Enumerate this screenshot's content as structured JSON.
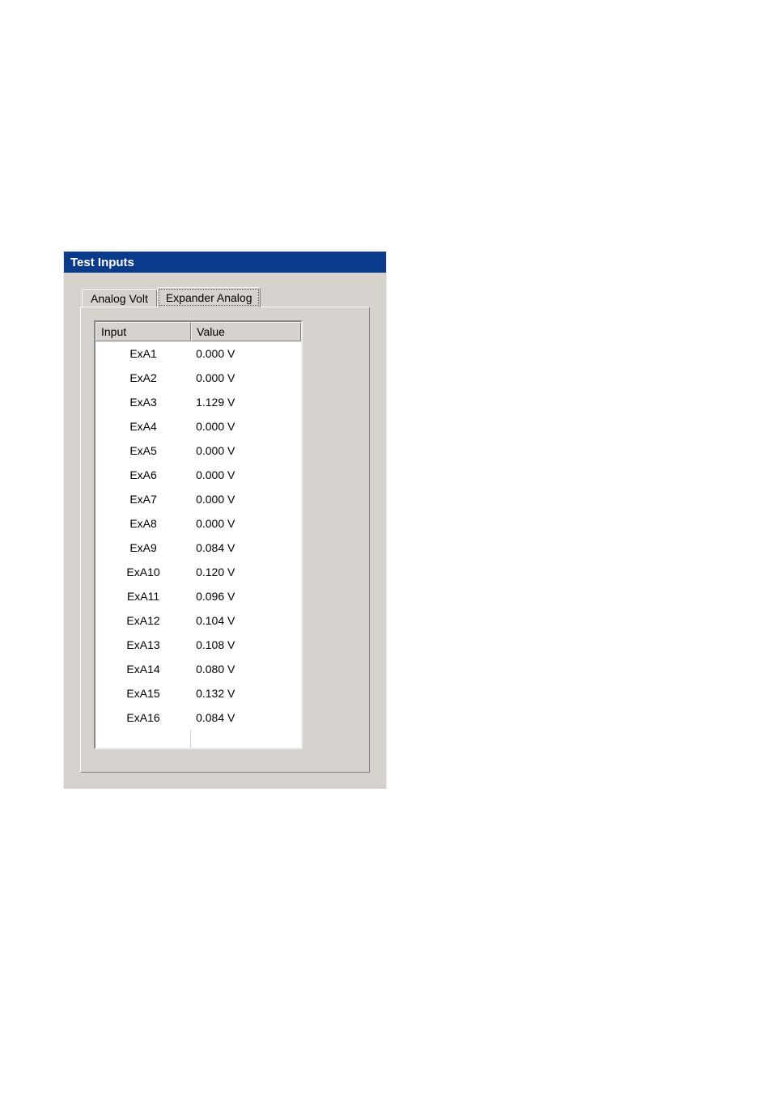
{
  "window": {
    "title": "Test Inputs",
    "titlebar_bg": "#0a3a8c",
    "titlebar_fg": "#ffffff",
    "bg": "#d6d3ce"
  },
  "tabs": {
    "items": [
      {
        "label": "Analog Volt",
        "active": false
      },
      {
        "label": "Expander Analog",
        "active": true
      }
    ]
  },
  "table": {
    "columns": [
      "Input",
      "Value"
    ],
    "rows": [
      {
        "input": "ExA1",
        "value": "0.000 V"
      },
      {
        "input": "ExA2",
        "value": "0.000 V"
      },
      {
        "input": "ExA3",
        "value": "1.129 V"
      },
      {
        "input": "ExA4",
        "value": "0.000 V"
      },
      {
        "input": "ExA5",
        "value": "0.000 V"
      },
      {
        "input": "ExA6",
        "value": "0.000 V"
      },
      {
        "input": "ExA7",
        "value": "0.000 V"
      },
      {
        "input": "ExA8",
        "value": "0.000 V"
      },
      {
        "input": "ExA9",
        "value": "0.084 V"
      },
      {
        "input": "ExA10",
        "value": "0.120 V"
      },
      {
        "input": "ExA11",
        "value": "0.096 V"
      },
      {
        "input": "ExA12",
        "value": "0.104 V"
      },
      {
        "input": "ExA13",
        "value": "0.108 V"
      },
      {
        "input": "ExA14",
        "value": "0.080 V"
      },
      {
        "input": "ExA15",
        "value": "0.132 V"
      },
      {
        "input": "ExA16",
        "value": "0.084 V"
      }
    ]
  }
}
